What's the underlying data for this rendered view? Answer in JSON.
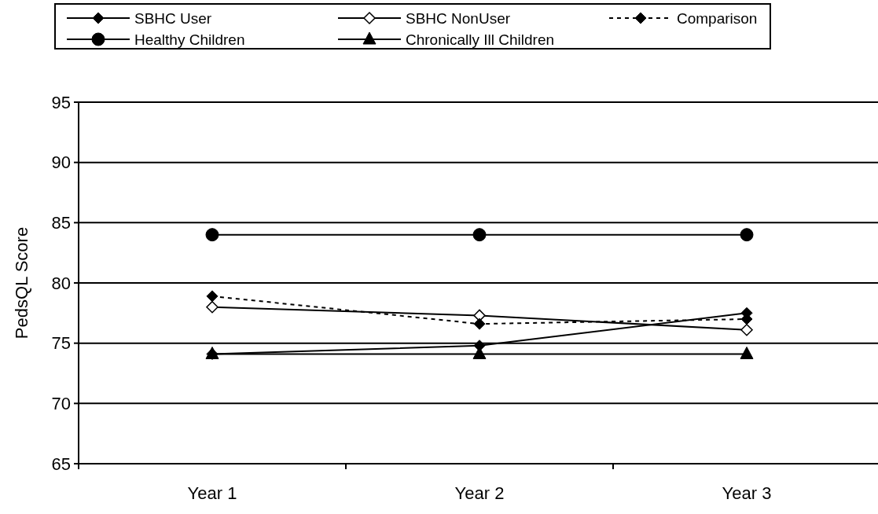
{
  "chart_data": {
    "type": "line",
    "ylabel": "PedsQL Score",
    "categories": [
      "Year 1",
      "Year 2",
      "Year 3"
    ],
    "ylim": [
      65,
      95
    ],
    "yticks": [
      65,
      70,
      75,
      80,
      85,
      90,
      95
    ],
    "grid": "y",
    "legend": "top",
    "marker": "diamond",
    "series": [
      {
        "name": "SBHC User",
        "color": "#000000",
        "values": [
          74.1,
          74.8,
          77.5
        ],
        "line_style": "solid"
      },
      {
        "name": "SBHC NonUser",
        "color": "#000000",
        "values": [
          78.0,
          77.3,
          76.1
        ],
        "marker": "diamond-open",
        "line_style": "solid"
      },
      {
        "name": "Comparison",
        "color": "#000000",
        "values": [
          78.9,
          76.6,
          77.0
        ],
        "line_style": "dashed"
      },
      {
        "name": "Healthy Children",
        "color": "#000000",
        "values": [
          84.0,
          84.0,
          84.0
        ],
        "marker": "circle",
        "line_style": "solid"
      },
      {
        "name": "Chronically Ill Children",
        "color": "#000000",
        "values": [
          74.1,
          74.1,
          74.1
        ],
        "marker": "triangle",
        "line_style": "solid"
      }
    ]
  }
}
